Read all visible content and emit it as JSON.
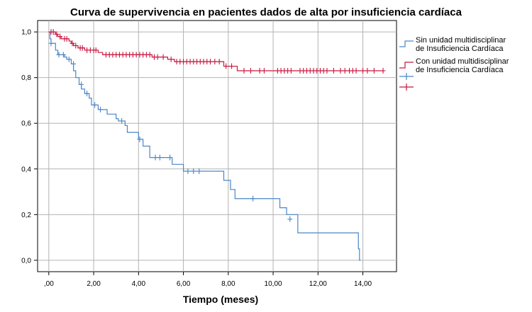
{
  "chart_data": {
    "type": "line",
    "title": "Curva de supervivencia en pacientes dados de alta por insuficiencia cardíaca",
    "xlabel": "Tiempo (meses)",
    "ylabel": "",
    "xlim": [
      -0.5,
      15.5
    ],
    "ylim": [
      -0.05,
      1.05
    ],
    "x_ticks": [
      0,
      2,
      4,
      6,
      8,
      10,
      12,
      14
    ],
    "x_tick_labels": [
      ",00",
      "2,00",
      "4,00",
      "6,00",
      "8,00",
      "10,00",
      "12,00",
      "14,00"
    ],
    "y_ticks": [
      0,
      0.2,
      0.4,
      0.6,
      0.8,
      1.0
    ],
    "y_tick_labels": [
      "0,0",
      "0,2",
      "0,4",
      "0,6",
      "0,8",
      "1,0"
    ],
    "grid": true,
    "legend_position": "right",
    "legend": [
      "Sin unidad multidisciplinar de Insuficiencia Cardíaca",
      "Con unidad multidisciplinar de Insuficiencia Cardíaca",
      "",
      ""
    ],
    "series": [
      {
        "name": "Sin unidad multidisciplinar de Insuficiencia Cardíaca",
        "color": "#4a86c8",
        "steps": [
          [
            0,
            1.0
          ],
          [
            0.05,
            0.97
          ],
          [
            0.1,
            0.95
          ],
          [
            0.3,
            0.92
          ],
          [
            0.4,
            0.9
          ],
          [
            0.7,
            0.89
          ],
          [
            0.8,
            0.88
          ],
          [
            1.0,
            0.86
          ],
          [
            1.1,
            0.83
          ],
          [
            1.2,
            0.8
          ],
          [
            1.35,
            0.77
          ],
          [
            1.45,
            0.75
          ],
          [
            1.6,
            0.73
          ],
          [
            1.8,
            0.71
          ],
          [
            1.9,
            0.68
          ],
          [
            2.2,
            0.66
          ],
          [
            2.6,
            0.64
          ],
          [
            3.0,
            0.62
          ],
          [
            3.1,
            0.61
          ],
          [
            3.4,
            0.59
          ],
          [
            3.5,
            0.56
          ],
          [
            4.0,
            0.53
          ],
          [
            4.2,
            0.5
          ],
          [
            4.5,
            0.45
          ],
          [
            5.5,
            0.42
          ],
          [
            6.0,
            0.39
          ],
          [
            7.8,
            0.35
          ],
          [
            8.1,
            0.31
          ],
          [
            8.3,
            0.27
          ],
          [
            10.3,
            0.23
          ],
          [
            10.6,
            0.2
          ],
          [
            11.1,
            0.12
          ],
          [
            13.8,
            0.05
          ],
          [
            13.85,
            0.0
          ]
        ],
        "censored": [
          [
            0.1,
            0.95
          ],
          [
            0.45,
            0.9
          ],
          [
            0.65,
            0.9
          ],
          [
            0.9,
            0.88
          ],
          [
            1.1,
            0.86
          ],
          [
            1.45,
            0.77
          ],
          [
            1.7,
            0.73
          ],
          [
            2.05,
            0.68
          ],
          [
            2.3,
            0.66
          ],
          [
            3.25,
            0.61
          ],
          [
            4.05,
            0.53
          ],
          [
            4.75,
            0.45
          ],
          [
            4.95,
            0.45
          ],
          [
            5.4,
            0.45
          ],
          [
            6.2,
            0.39
          ],
          [
            6.45,
            0.39
          ],
          [
            6.7,
            0.39
          ],
          [
            9.1,
            0.27
          ],
          [
            10.75,
            0.18
          ]
        ],
        "end_x": 13.9
      },
      {
        "name": "Con unidad multidisciplinar de Insuficiencia Cardíaca",
        "color": "#c8173f",
        "steps": [
          [
            0,
            1.0
          ],
          [
            0.3,
            0.99
          ],
          [
            0.4,
            0.98
          ],
          [
            0.55,
            0.97
          ],
          [
            0.9,
            0.96
          ],
          [
            1.0,
            0.95
          ],
          [
            1.1,
            0.94
          ],
          [
            1.3,
            0.93
          ],
          [
            1.6,
            0.92
          ],
          [
            2.2,
            0.91
          ],
          [
            2.4,
            0.9
          ],
          [
            4.6,
            0.89
          ],
          [
            5.3,
            0.88
          ],
          [
            5.6,
            0.87
          ],
          [
            7.8,
            0.85
          ],
          [
            8.4,
            0.83
          ]
        ],
        "censored": [
          [
            0.1,
            1.0
          ],
          [
            0.2,
            1.0
          ],
          [
            0.35,
            0.99
          ],
          [
            0.5,
            0.98
          ],
          [
            0.7,
            0.97
          ],
          [
            0.8,
            0.97
          ],
          [
            1.05,
            0.95
          ],
          [
            1.2,
            0.94
          ],
          [
            1.4,
            0.93
          ],
          [
            1.5,
            0.93
          ],
          [
            1.7,
            0.92
          ],
          [
            1.85,
            0.92
          ],
          [
            2.0,
            0.92
          ],
          [
            2.1,
            0.92
          ],
          [
            2.55,
            0.9
          ],
          [
            2.7,
            0.9
          ],
          [
            2.85,
            0.9
          ],
          [
            3.0,
            0.9
          ],
          [
            3.15,
            0.9
          ],
          [
            3.3,
            0.9
          ],
          [
            3.45,
            0.9
          ],
          [
            3.6,
            0.9
          ],
          [
            3.75,
            0.9
          ],
          [
            3.9,
            0.9
          ],
          [
            4.05,
            0.9
          ],
          [
            4.2,
            0.9
          ],
          [
            4.35,
            0.9
          ],
          [
            4.5,
            0.9
          ],
          [
            4.7,
            0.89
          ],
          [
            4.85,
            0.89
          ],
          [
            5.1,
            0.89
          ],
          [
            5.45,
            0.88
          ],
          [
            5.7,
            0.87
          ],
          [
            5.85,
            0.87
          ],
          [
            6.0,
            0.87
          ],
          [
            6.15,
            0.87
          ],
          [
            6.3,
            0.87
          ],
          [
            6.45,
            0.87
          ],
          [
            6.6,
            0.87
          ],
          [
            6.75,
            0.87
          ],
          [
            6.9,
            0.87
          ],
          [
            7.05,
            0.87
          ],
          [
            7.2,
            0.87
          ],
          [
            7.4,
            0.87
          ],
          [
            7.6,
            0.87
          ],
          [
            7.9,
            0.85
          ],
          [
            8.15,
            0.85
          ],
          [
            8.7,
            0.83
          ],
          [
            9.0,
            0.83
          ],
          [
            9.4,
            0.83
          ],
          [
            9.6,
            0.83
          ],
          [
            10.2,
            0.83
          ],
          [
            10.35,
            0.83
          ],
          [
            10.5,
            0.83
          ],
          [
            10.65,
            0.83
          ],
          [
            10.8,
            0.83
          ],
          [
            11.2,
            0.83
          ],
          [
            11.35,
            0.83
          ],
          [
            11.5,
            0.83
          ],
          [
            11.65,
            0.83
          ],
          [
            11.8,
            0.83
          ],
          [
            11.95,
            0.83
          ],
          [
            12.1,
            0.83
          ],
          [
            12.25,
            0.83
          ],
          [
            12.4,
            0.83
          ],
          [
            12.7,
            0.83
          ],
          [
            13.0,
            0.83
          ],
          [
            13.2,
            0.83
          ],
          [
            13.4,
            0.83
          ],
          [
            13.55,
            0.83
          ],
          [
            13.7,
            0.83
          ],
          [
            14.0,
            0.83
          ],
          [
            14.2,
            0.83
          ],
          [
            14.5,
            0.83
          ],
          [
            14.9,
            0.83
          ]
        ],
        "end_x": 14.95
      }
    ]
  }
}
